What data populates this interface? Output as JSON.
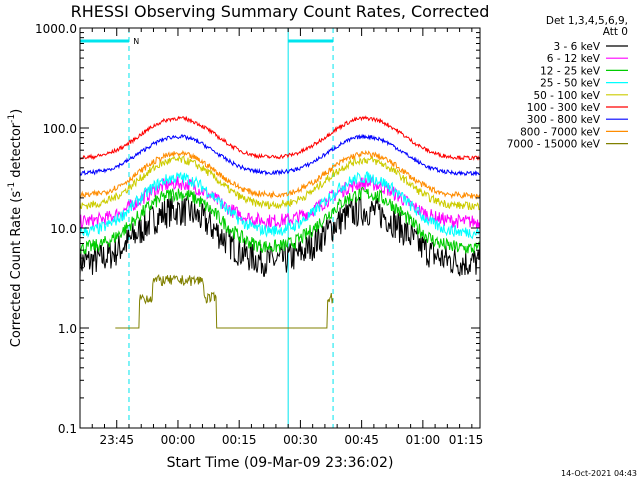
{
  "chart_data": {
    "type": "line",
    "title": "RHESSI Observing Summary Count Rates, Corrected",
    "xlabel": "Start Time (09-Mar-09 23:36:02)",
    "ylabel_main": "Corrected Count Rate (s",
    "ylabel_sup1": "-1",
    "ylabel_mid": " detector",
    "ylabel_sup2": "-1",
    "ylabel_end": ")",
    "y_scale": "log",
    "ylim": [
      0.1,
      1000.0
    ],
    "xlim_minutes_after_start": [
      0,
      98
    ],
    "x_ticks": [
      {
        "label": "23:45",
        "t": 9
      },
      {
        "label": "00:00",
        "t": 24
      },
      {
        "label": "00:15",
        "t": 39
      },
      {
        "label": "00:30",
        "t": 54
      },
      {
        "label": "00:45",
        "t": 69
      },
      {
        "label": "01:00",
        "t": 84
      },
      {
        "label": "01:15",
        "t": 99
      }
    ],
    "y_ticks": [
      {
        "label": "1000.0",
        "v": 1000
      },
      {
        "label": "100.0",
        "v": 100
      },
      {
        "label": "10.0",
        "v": 10
      },
      {
        "label": "1.0",
        "v": 1
      },
      {
        "label": "0.1",
        "v": 0.1
      }
    ],
    "legend_header": [
      "Det 1,3,4,5,6,9,",
      "Att 0"
    ],
    "legend_position": "right",
    "series": [
      {
        "name": "3 - 6 keV",
        "color": "#000000",
        "base": 4.5,
        "peak": 15,
        "noise": 0.16
      },
      {
        "name": "6 - 12 keV",
        "color": "#ff00ff",
        "base": 11.5,
        "peak": 28,
        "noise": 0.07
      },
      {
        "name": "12 - 25 keV",
        "color": "#00cc00",
        "base": 6.2,
        "peak": 22,
        "noise": 0.07
      },
      {
        "name": "25 - 50 keV",
        "color": "#00ffff",
        "base": 9.0,
        "peak": 32,
        "noise": 0.06
      },
      {
        "name": "50 - 100 keV",
        "color": "#cccc00",
        "base": 16.5,
        "peak": 48,
        "noise": 0.04
      },
      {
        "name": "100 - 300 keV",
        "color": "#ff0000",
        "base": 50,
        "peak": 125,
        "noise": 0.02
      },
      {
        "name": "300 - 800 keV",
        "color": "#0000ff",
        "base": 35,
        "peak": 82,
        "noise": 0.02
      },
      {
        "name": "800 - 7000 keV",
        "color": "#ff8c00",
        "base": 21,
        "peak": 55,
        "noise": 0.03
      },
      {
        "name": "7000 - 15000 keV",
        "color": "#808000",
        "base": 1.0,
        "peak": 3.5,
        "noise": 0.0
      }
    ],
    "orbit_peaks_minutes": [
      24,
      70
    ],
    "orbit_sigma_minutes": 7.5,
    "night_bars": [
      [
        0,
        12
      ],
      [
        51,
        62
      ]
    ],
    "night_lines_minutes": [
      12,
      51
    ],
    "cyan_verticals_minutes": [
      0,
      12,
      51,
      62
    ],
    "flag_labels": [
      {
        "label": "N",
        "t": 12.8
      }
    ],
    "colors": {
      "cyan": "#00e5ee",
      "axis": "#000000"
    }
  },
  "footer": {
    "timestamp": "14-Oct-2021 04:43"
  }
}
